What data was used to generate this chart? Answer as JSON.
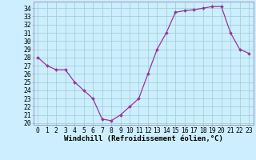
{
  "x": [
    0,
    1,
    2,
    3,
    4,
    5,
    6,
    7,
    8,
    9,
    10,
    11,
    12,
    13,
    14,
    15,
    16,
    17,
    18,
    19,
    20,
    21,
    22,
    23
  ],
  "y": [
    28,
    27,
    26.5,
    26.5,
    25,
    24,
    23,
    20.5,
    20.3,
    21,
    22,
    23,
    26,
    29,
    31,
    33.5,
    33.7,
    33.8,
    34,
    34.2,
    34.2,
    31,
    29,
    28.5
  ],
  "line_color": "#993399",
  "marker": "D",
  "marker_size": 2.0,
  "linewidth": 0.9,
  "bg_color": "#cceeff",
  "grid_color": "#99cccc",
  "xlabel": "Windchill (Refroidissement éolien,°C)",
  "xlabel_fontsize": 6.5,
  "ylabel_ticks": [
    20,
    21,
    22,
    23,
    24,
    25,
    26,
    27,
    28,
    29,
    30,
    31,
    32,
    33,
    34
  ],
  "xlim": [
    -0.5,
    23.5
  ],
  "ylim": [
    19.8,
    34.8
  ],
  "tick_fontsize": 5.8,
  "spine_color": "#9999bb"
}
